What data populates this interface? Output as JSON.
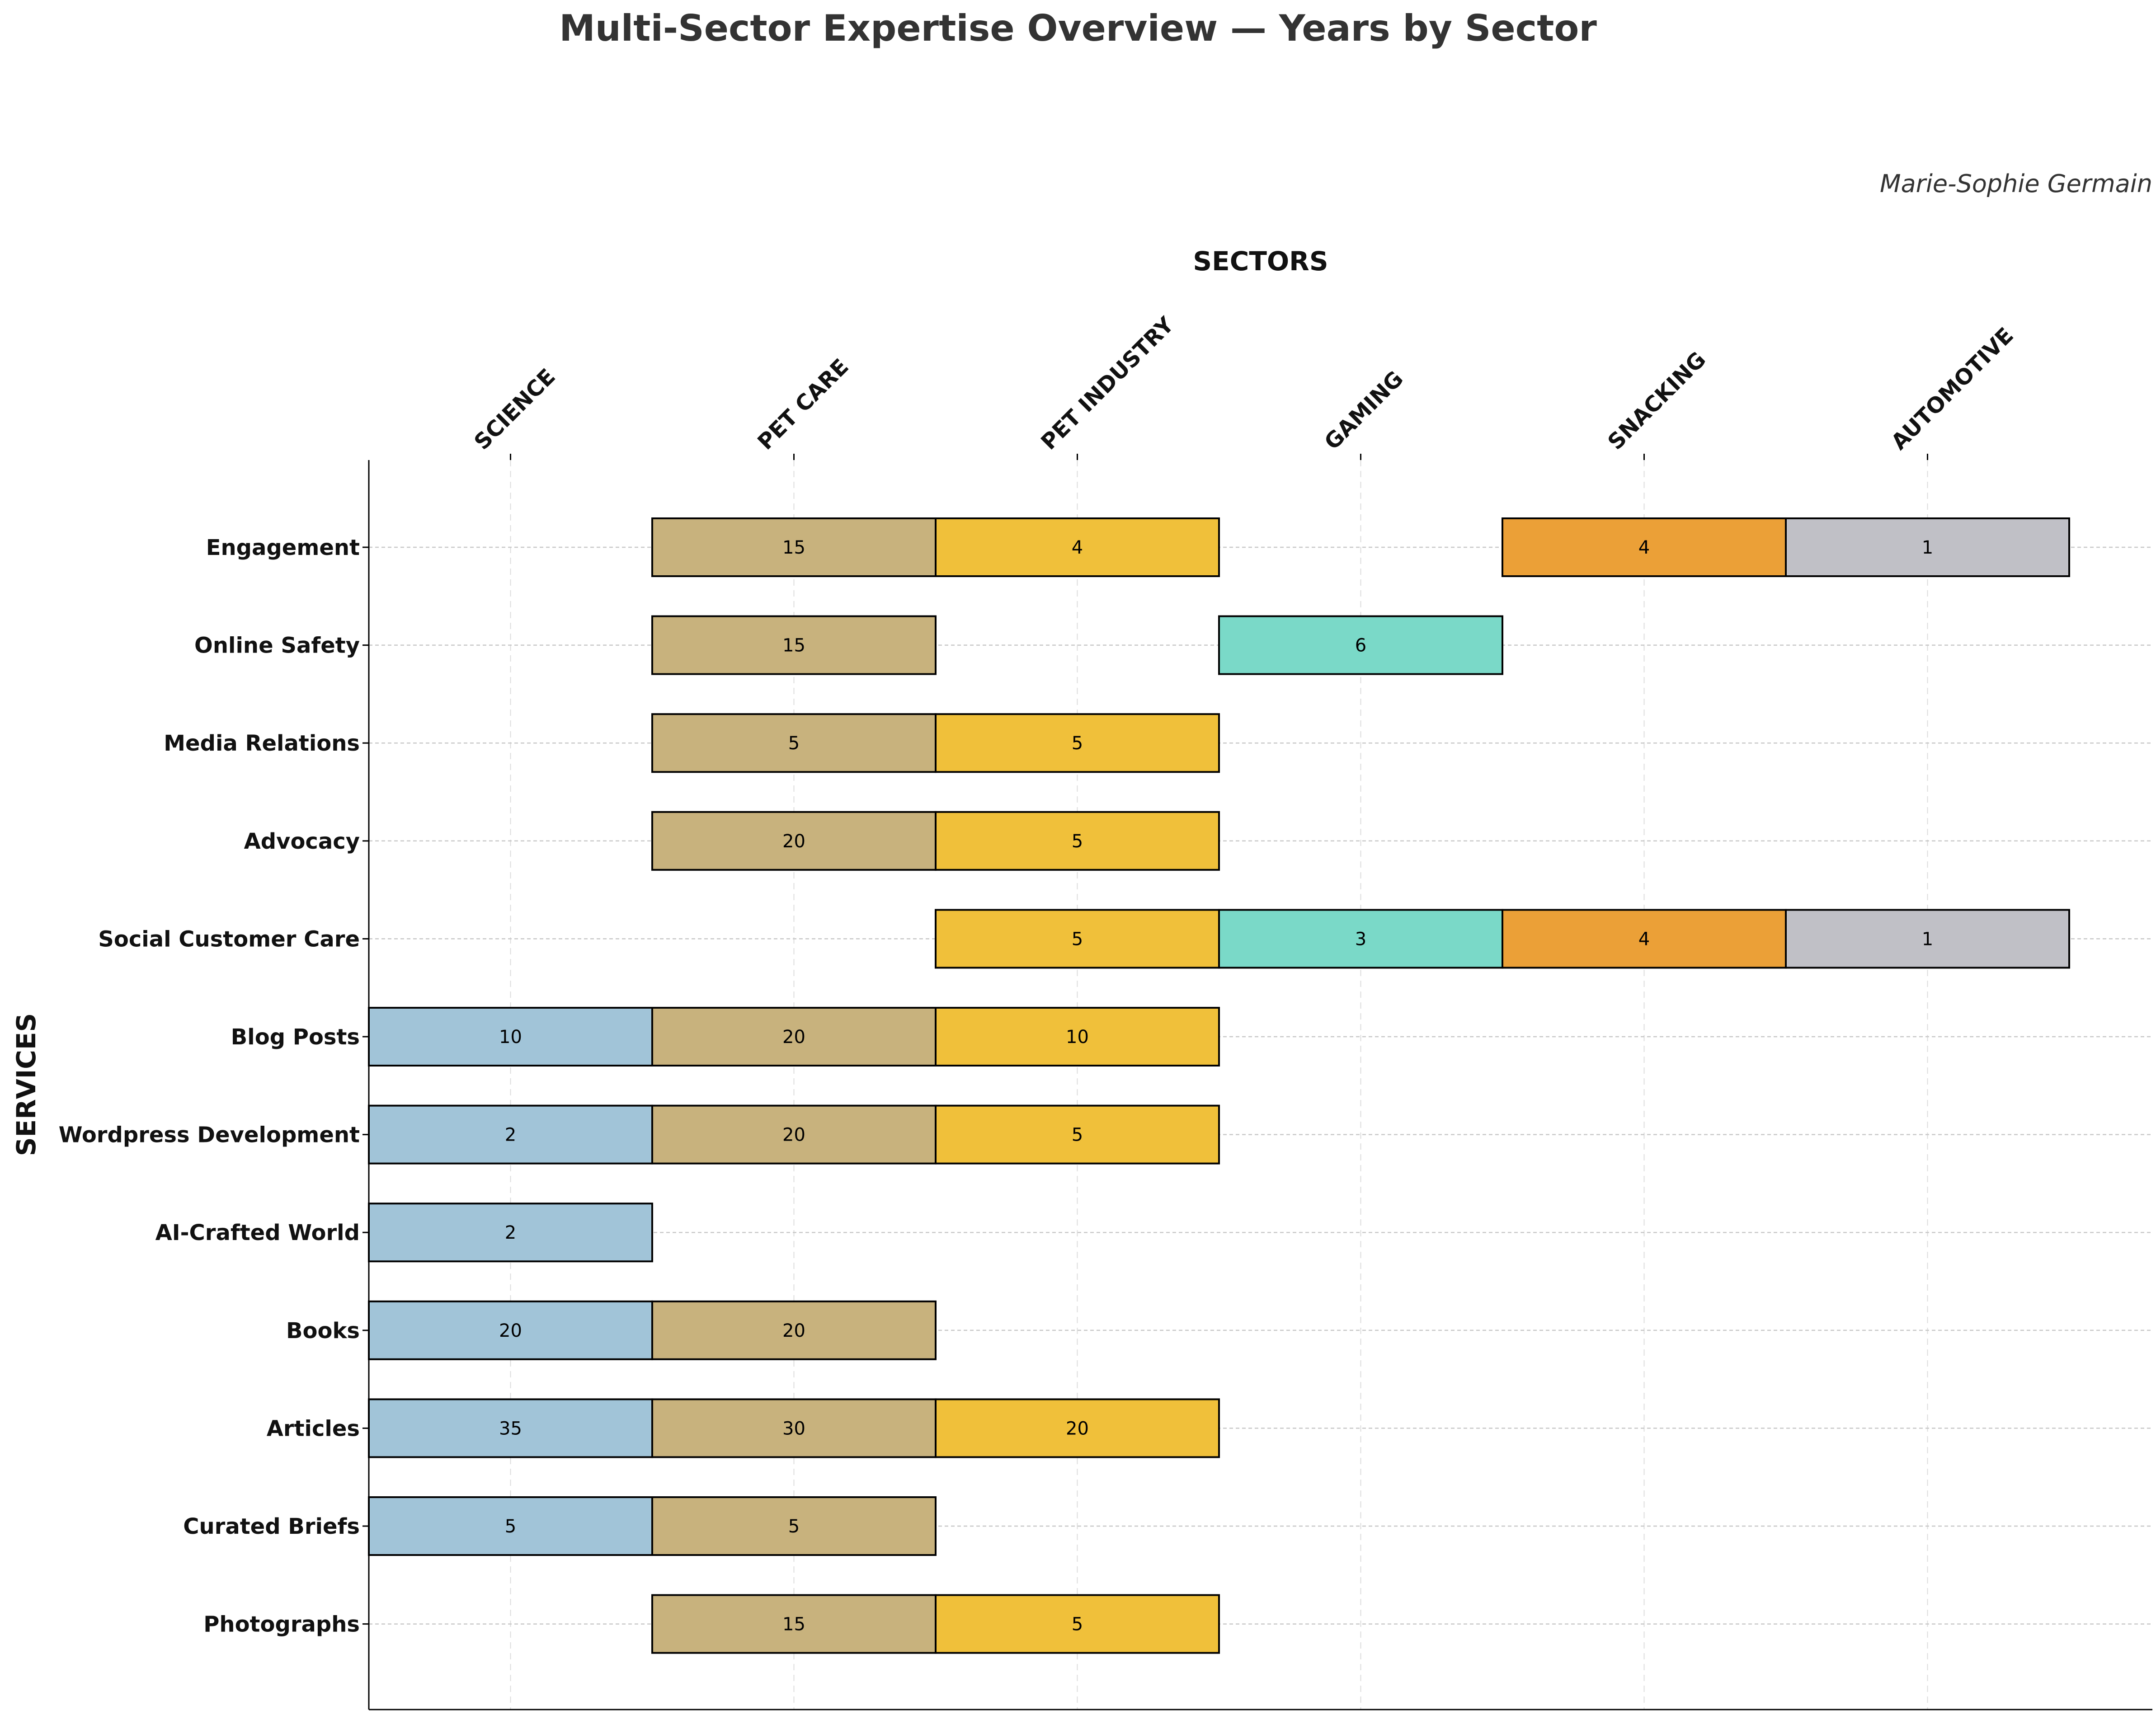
{
  "chart_data": {
    "type": "heatmap",
    "title": "Multi-Sector Expertise Overview — Years by Sector",
    "author": "Marie-Sophie Germain",
    "xlabel": "SECTORS",
    "ylabel": "SERVICES",
    "grid": true,
    "categories": [
      "SCIENCE",
      "PET CARE",
      "PET INDUSTRY",
      "GAMING",
      "SNACKING",
      "AUTOMOTIVE"
    ],
    "sector_colors": [
      "#a1c4d8",
      "#c8b27d",
      "#f0c03a",
      "#7ad9c8",
      "#eba037",
      "#c0c0c6"
    ],
    "rows": [
      "Engagement",
      "Online Safety",
      "Media Relations",
      "Advocacy",
      "Social Customer Care",
      "Blog Posts",
      "Wordpress Development",
      "AI-Crafted World",
      "Books",
      "Articles",
      "Curated Briefs",
      "Photographs"
    ],
    "series": [
      {
        "name": "Engagement",
        "values": [
          null,
          15,
          4,
          null,
          4,
          1
        ]
      },
      {
        "name": "Online Safety",
        "values": [
          null,
          15,
          null,
          6,
          null,
          null
        ]
      },
      {
        "name": "Media Relations",
        "values": [
          null,
          5,
          5,
          null,
          null,
          null
        ]
      },
      {
        "name": "Advocacy",
        "values": [
          null,
          20,
          5,
          null,
          null,
          null
        ]
      },
      {
        "name": "Social Customer Care",
        "values": [
          null,
          null,
          5,
          3,
          4,
          1
        ]
      },
      {
        "name": "Blog Posts",
        "values": [
          10,
          20,
          10,
          null,
          null,
          null
        ]
      },
      {
        "name": "Wordpress Development",
        "values": [
          2,
          20,
          5,
          null,
          null,
          null
        ]
      },
      {
        "name": "AI-Crafted World",
        "values": [
          2,
          null,
          null,
          null,
          null,
          null
        ]
      },
      {
        "name": "Books",
        "values": [
          20,
          20,
          null,
          null,
          null,
          null
        ]
      },
      {
        "name": "Articles",
        "values": [
          35,
          30,
          20,
          null,
          null,
          null
        ]
      },
      {
        "name": "Curated Briefs",
        "values": [
          5,
          5,
          null,
          null,
          null,
          null
        ]
      },
      {
        "name": "Photographs",
        "values": [
          null,
          15,
          5,
          null,
          null,
          null
        ]
      }
    ]
  }
}
